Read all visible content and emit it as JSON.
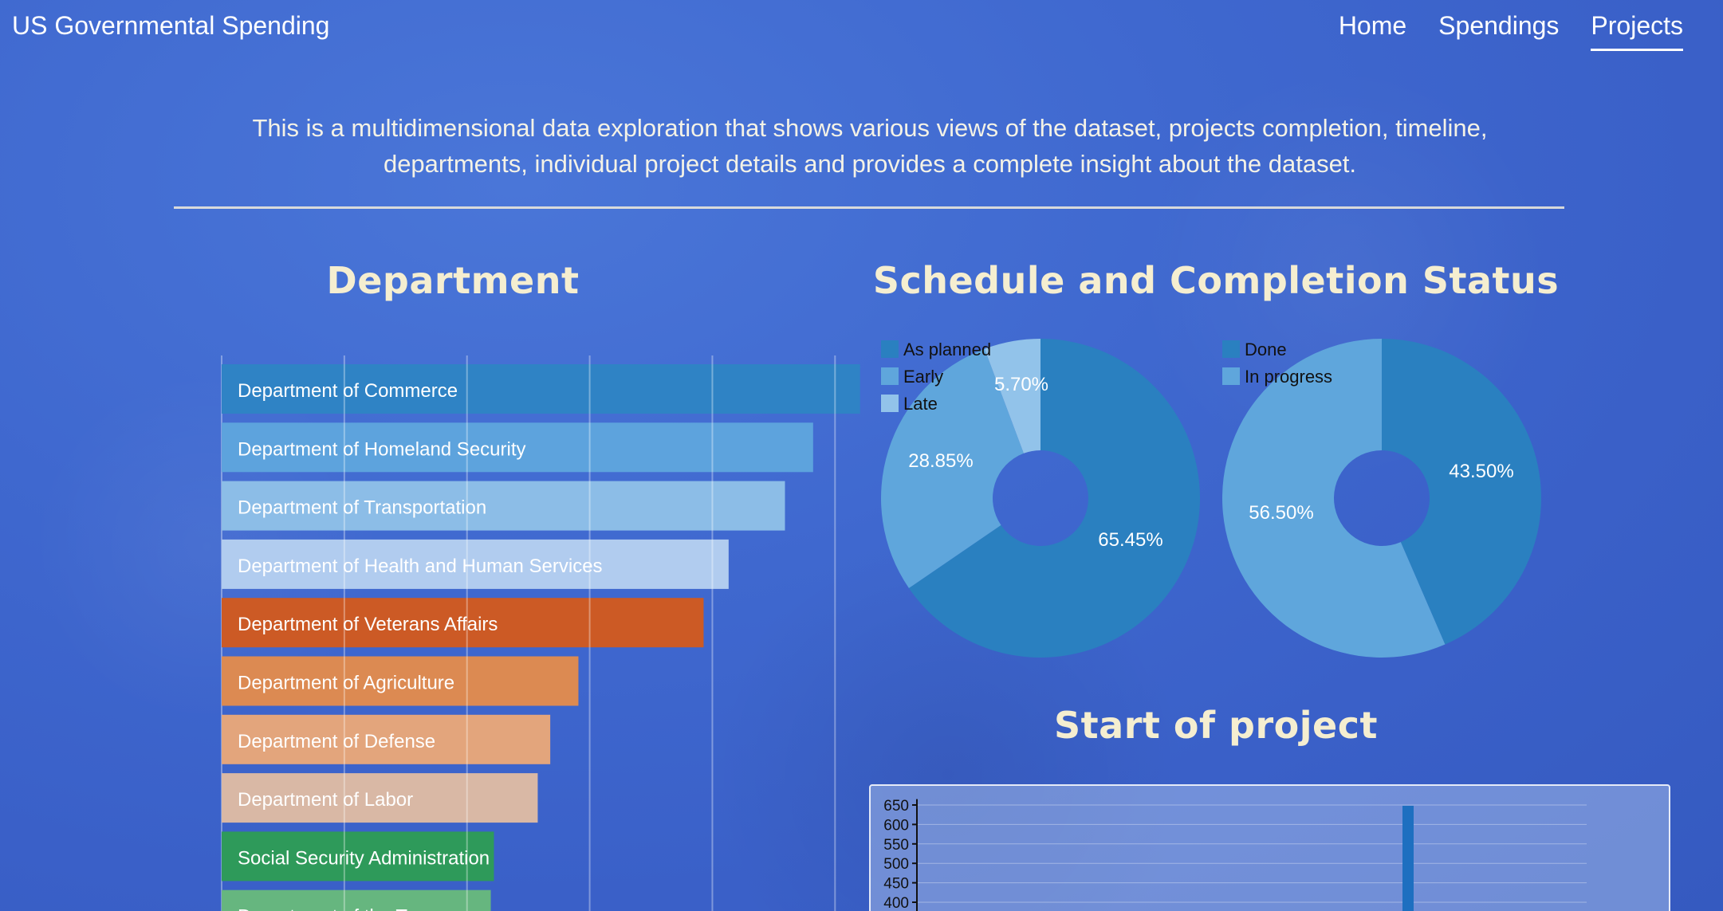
{
  "header": {
    "brand": "US Governmental Spending",
    "nav": [
      {
        "label": "Home",
        "active": false
      },
      {
        "label": "Spendings",
        "active": false
      },
      {
        "label": "Projects",
        "active": true
      }
    ]
  },
  "intro": {
    "line1": "This is a multidimensional data exploration that shows various views of the dataset, projects completion, timeline,",
    "line2": "departments, individual project details and provides a complete insight about the dataset."
  },
  "sections": {
    "department_title": "Department",
    "schedule_title": "Schedule and Completion Status",
    "start_title": "Start of project"
  },
  "chart_data": [
    {
      "type": "bar",
      "orientation": "horizontal",
      "title": "Department",
      "categories": [
        "Department of Commerce",
        "Department of Homeland Security",
        "Department of Transportation",
        "Department of Health and Human Services",
        "Department of Veterans Affairs",
        "Department of Agriculture",
        "Department of Defense",
        "Department of Labor",
        "Social Security Administration",
        "Department of the Treasury"
      ],
      "values": [
        102,
        94.5,
        90,
        81,
        77,
        57,
        52.5,
        50.5,
        43.5,
        43
      ],
      "colors": [
        "#2f83c5",
        "#5da3dd",
        "#8cbde7",
        "#b1ccef",
        "#cc5a25",
        "#dc8a52",
        "#e3a57c",
        "#d9b8a5",
        "#2e9a5a",
        "#66b67f"
      ],
      "xlim": [
        0,
        100
      ],
      "grid": true
    },
    {
      "type": "pie",
      "donut": true,
      "labels": [
        "As planned",
        "Early",
        "Late"
      ],
      "values": [
        65.45,
        28.85,
        5.7
      ],
      "display": [
        "65.45%",
        "28.85%",
        "5.70%"
      ],
      "colors": [
        "#2a80c0",
        "#5fa6dc",
        "#92c3ea"
      ],
      "legend": "top-left"
    },
    {
      "type": "pie",
      "donut": true,
      "labels": [
        "Done",
        "In progress"
      ],
      "values": [
        43.5,
        56.5
      ],
      "display": [
        "43.50%",
        "56.50%"
      ],
      "colors": [
        "#2a80c0",
        "#5fa6dc"
      ],
      "legend": "top-left"
    },
    {
      "type": "bar",
      "title": "Start of project",
      "yticks": [
        "650",
        "600",
        "550",
        "500",
        "450",
        "400"
      ],
      "ylim": [
        385,
        665
      ],
      "bars": [
        {
          "x": 0.725,
          "value": 648
        }
      ],
      "color": "#1e6fc0",
      "grid": true
    }
  ]
}
